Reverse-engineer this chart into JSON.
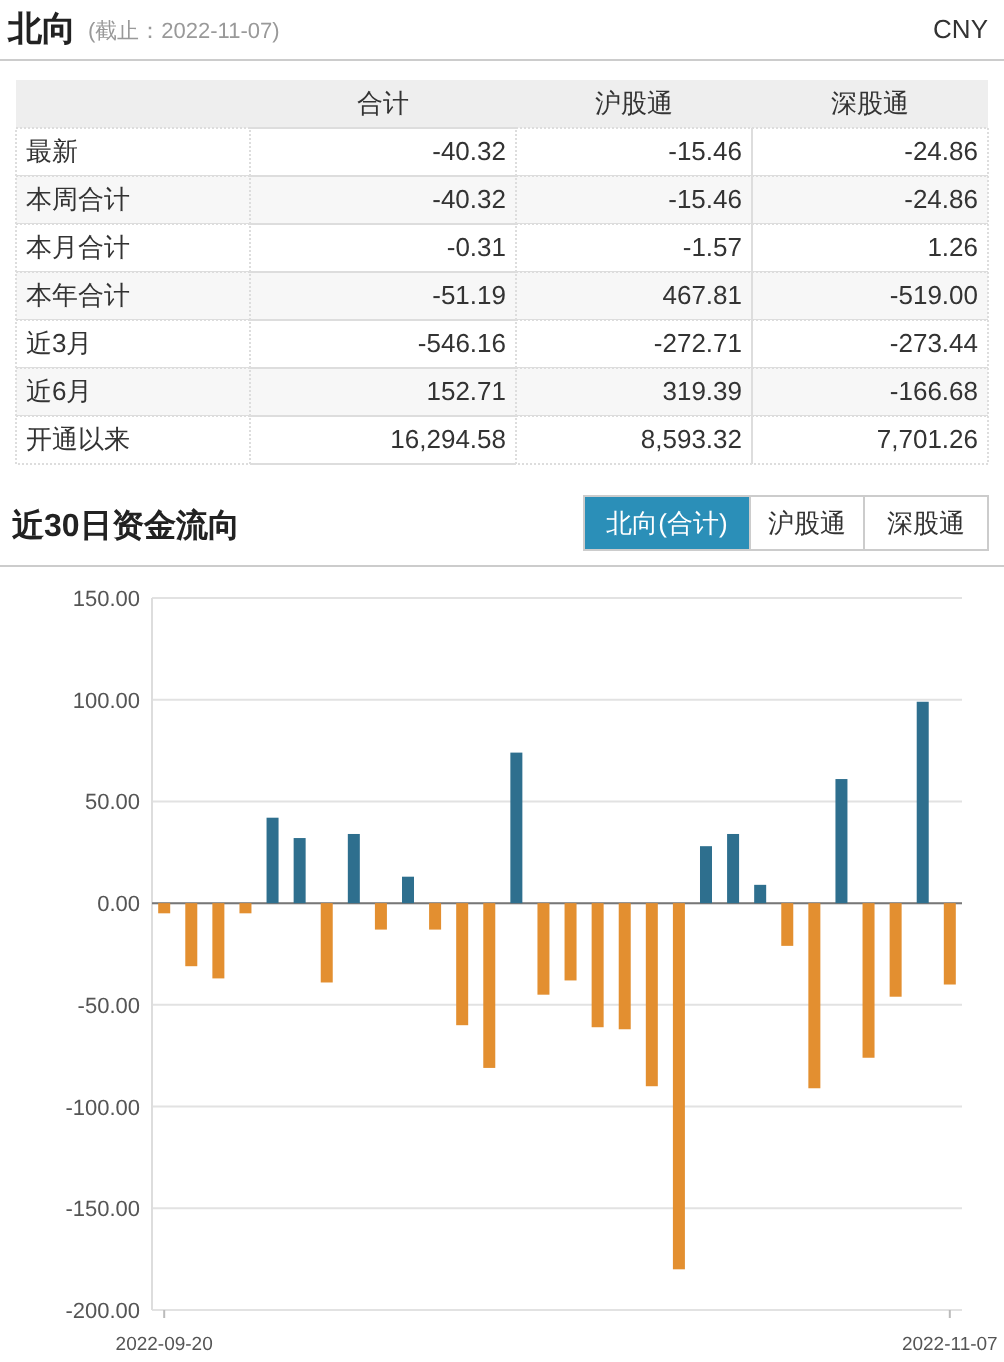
{
  "chart_data": [
    {
      "type": "heatmap",
      "title": "北向",
      "subtitle": "(截止：2022-11-07)",
      "annotations": [
        "CNY"
      ],
      "categories": [
        "合计",
        "沪股通",
        "深股通"
      ],
      "y_categories": [
        "最新",
        "本周合计",
        "本月合计",
        "本年合计",
        "近3月",
        "近6月",
        "开通以来"
      ],
      "cells": [
        [
          -40.32,
          -15.46,
          -24.86
        ],
        [
          -40.32,
          -15.46,
          -24.86
        ],
        [
          -0.31,
          -1.57,
          1.26
        ],
        [
          -51.19,
          467.81,
          -519.0
        ],
        [
          -546.16,
          -272.71,
          -273.44
        ],
        [
          152.71,
          319.39,
          -166.68
        ],
        [
          16294.58,
          8593.32,
          7701.26
        ]
      ],
      "cell_labels": [
        [
          "-40.32",
          "-15.46",
          "-24.86"
        ],
        [
          "-40.32",
          "-15.46",
          "-24.86"
        ],
        [
          "-0.31",
          "-1.57",
          "1.26"
        ],
        [
          "-51.19",
          "467.81",
          "-519.00"
        ],
        [
          "-546.16",
          "-272.71",
          "-273.44"
        ],
        [
          "152.71",
          "319.39",
          "-166.68"
        ],
        [
          "16,294.58",
          "8,593.32",
          "7,701.26"
        ]
      ]
    },
    {
      "type": "bar",
      "title": "近30日资金流向",
      "annotations": [
        "北向(合计)",
        "沪股通",
        "深股通"
      ],
      "categories": [
        "2022-09-20",
        null,
        null,
        null,
        null,
        null,
        null,
        null,
        null,
        null,
        null,
        null,
        null,
        null,
        null,
        null,
        null,
        null,
        null,
        null,
        null,
        null,
        null,
        null,
        null,
        null,
        null,
        null,
        null,
        "2022-11-07"
      ],
      "values": [
        -5,
        -31,
        -37,
        -5,
        42,
        32,
        -39,
        34,
        -13,
        13,
        -13,
        -60,
        -81,
        74,
        -45,
        -38,
        -61,
        -62,
        -90,
        -180,
        28,
        34,
        9,
        -21,
        -91,
        61,
        -76,
        -46,
        99,
        -40
      ],
      "colors": [
        "#e38f30",
        "#e38f30",
        "#e38f30",
        "#e38f30",
        "#2e6f8e",
        "#2e6f8e",
        "#e38f30",
        "#2e6f8e",
        "#e38f30",
        "#2e6f8e",
        "#e38f30",
        "#e38f30",
        "#e38f30",
        "#2e6f8e",
        "#e38f30",
        "#e38f30",
        "#e38f30",
        "#e38f30",
        "#e38f30",
        "#e38f30",
        "#2e6f8e",
        "#2e6f8e",
        "#2e6f8e",
        "#e38f30",
        "#e38f30",
        "#2e6f8e",
        "#e38f30",
        "#e38f30",
        "#2e6f8e",
        "#e38f30"
      ],
      "ylim": [
        -200,
        150
      ],
      "yticks": [
        {
          "value": -200,
          "label": "-200.00"
        },
        {
          "value": -150,
          "label": "-150.00"
        },
        {
          "value": -100,
          "label": "-100.00"
        },
        {
          "value": -50,
          "label": "-50.00"
        },
        {
          "value": 0,
          "label": "0.00"
        },
        {
          "value": 50,
          "label": "50.00"
        },
        {
          "value": 100,
          "label": "100.00"
        },
        {
          "value": 150,
          "label": "150.00"
        }
      ],
      "grid": "y"
    }
  ]
}
